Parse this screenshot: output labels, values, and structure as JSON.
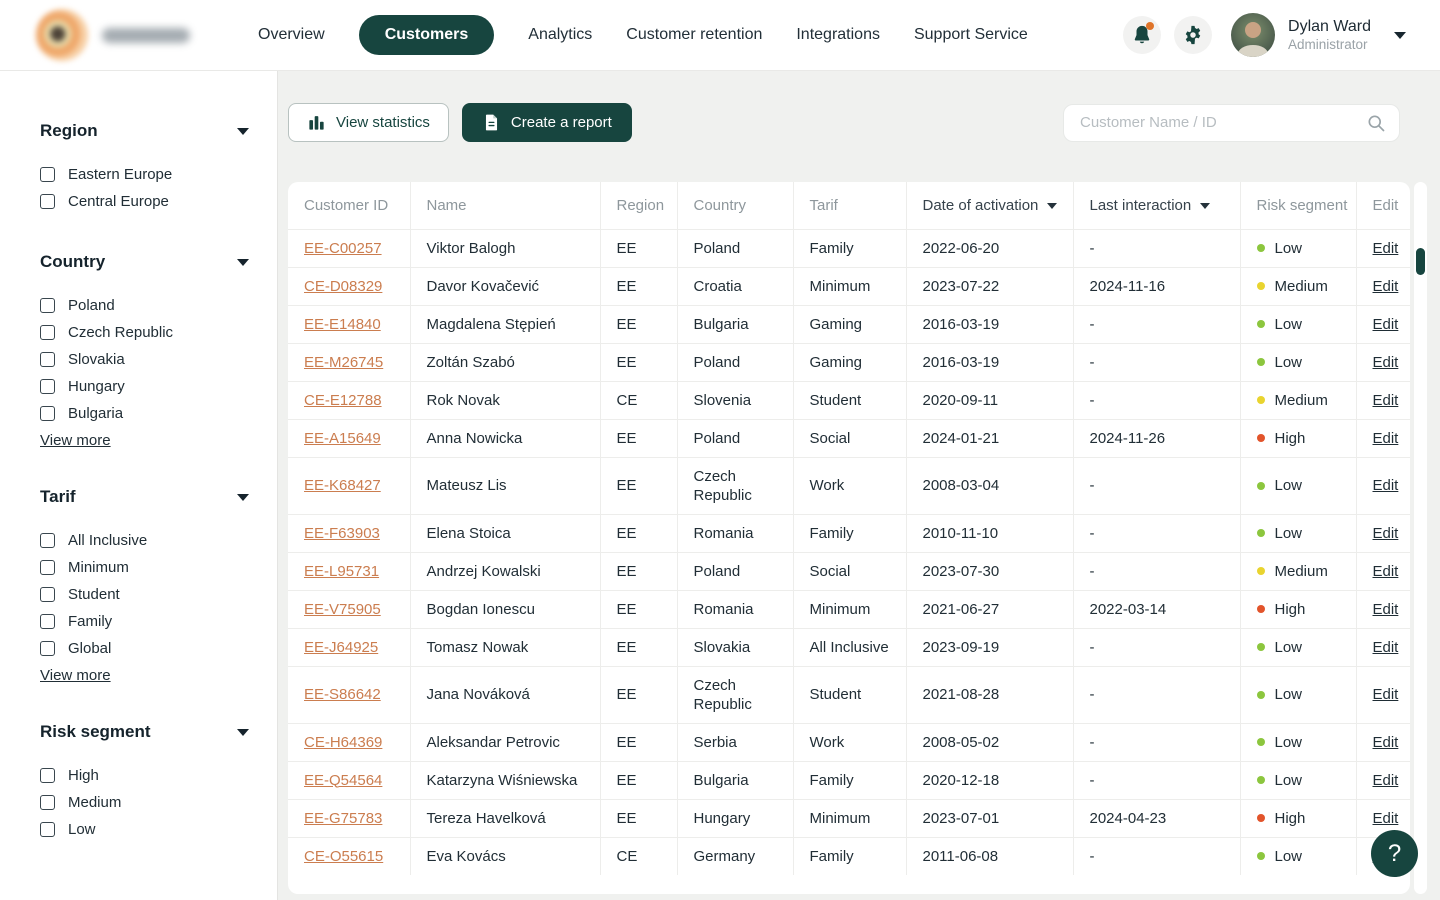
{
  "header": {
    "nav": [
      {
        "label": "Overview",
        "active": false
      },
      {
        "label": "Customers",
        "active": true
      },
      {
        "label": "Analytics",
        "active": false
      },
      {
        "label": "Customer retention",
        "active": false
      },
      {
        "label": "Integrations",
        "active": false
      },
      {
        "label": "Support Service",
        "active": false
      }
    ],
    "user": {
      "name": "Dylan Ward",
      "role": "Administrator"
    }
  },
  "sidebar": {
    "view_more_label": "View more",
    "groups": [
      {
        "title": "Region",
        "items": [
          "Eastern Europe",
          "Central Europe"
        ],
        "view_more": false
      },
      {
        "title": "Country",
        "items": [
          "Poland",
          "Czech Republic",
          "Slovakia",
          "Hungary",
          "Bulgaria"
        ],
        "view_more": true
      },
      {
        "title": "Tarif",
        "items": [
          "All Inclusive",
          "Minimum",
          "Student",
          "Family",
          "Global"
        ],
        "view_more": true
      },
      {
        "title": "Risk segment",
        "items": [
          "High",
          "Medium",
          "Low"
        ],
        "view_more": false
      }
    ]
  },
  "toolbar": {
    "view_statistics_label": "View statistics",
    "create_report_label": "Create a report",
    "search_placeholder": "Customer Name / ID"
  },
  "table": {
    "columns": [
      "Customer ID",
      "Name",
      "Region",
      "Country",
      "Tarif",
      "Date of activation",
      "Last interaction",
      "Risk segment",
      "Edit"
    ],
    "sortable_columns": [
      "Date of activation",
      "Last interaction"
    ],
    "edit_label": "Edit",
    "rows": [
      {
        "id": "EE-C00257",
        "name": "Viktor Balogh",
        "region": "EE",
        "country": "Poland",
        "tarif": "Family",
        "activation": "2022-06-20",
        "last_interaction": "-",
        "risk": "Low"
      },
      {
        "id": "CE-D08329",
        "name": "Davor Kovačević",
        "region": "EE",
        "country": "Croatia",
        "tarif": "Minimum",
        "activation": "2023-07-22",
        "last_interaction": "2024-11-16",
        "risk": "Medium"
      },
      {
        "id": "EE-E14840",
        "name": "Magdalena Stępień",
        "region": "EE",
        "country": "Bulgaria",
        "tarif": "Gaming",
        "activation": "2016-03-19",
        "last_interaction": "-",
        "risk": "Low"
      },
      {
        "id": "EE-M26745",
        "name": "Zoltán Szabó",
        "region": "EE",
        "country": "Poland",
        "tarif": "Gaming",
        "activation": "2016-03-19",
        "last_interaction": "-",
        "risk": "Low"
      },
      {
        "id": "CE-E12788",
        "name": "Rok Novak",
        "region": "CE",
        "country": "Slovenia",
        "tarif": "Student",
        "activation": "2020-09-11",
        "last_interaction": "-",
        "risk": "Medium"
      },
      {
        "id": "EE-A15649",
        "name": "Anna Nowicka",
        "region": "EE",
        "country": "Poland",
        "tarif": "Social",
        "activation": "2024-01-21",
        "last_interaction": "2024-11-26",
        "risk": "High"
      },
      {
        "id": "EE-K68427",
        "name": "Mateusz Lis",
        "region": "EE",
        "country": "Czech Republic",
        "tarif": "Work",
        "activation": "2008-03-04",
        "last_interaction": "-",
        "risk": "Low"
      },
      {
        "id": "EE-F63903",
        "name": "Elena Stoica",
        "region": "EE",
        "country": "Romania",
        "tarif": "Family",
        "activation": "2010-11-10",
        "last_interaction": "-",
        "risk": "Low"
      },
      {
        "id": "EE-L95731",
        "name": "Andrzej Kowalski",
        "region": "EE",
        "country": "Poland",
        "tarif": "Social",
        "activation": "2023-07-30",
        "last_interaction": "-",
        "risk": "Medium"
      },
      {
        "id": "EE-V75905",
        "name": "Bogdan Ionescu",
        "region": "EE",
        "country": "Romania",
        "tarif": "Minimum",
        "activation": "2021-06-27",
        "last_interaction": "2022-03-14",
        "risk": "High"
      },
      {
        "id": "EE-J64925",
        "name": "Tomasz Nowak",
        "region": "EE",
        "country": "Slovakia",
        "tarif": "All Inclusive",
        "activation": "2023-09-19",
        "last_interaction": "-",
        "risk": "Low"
      },
      {
        "id": "EE-S86642",
        "name": "Jana Nováková",
        "region": "EE",
        "country": "Czech Republic",
        "tarif": "Student",
        "activation": "2021-08-28",
        "last_interaction": "-",
        "risk": "Low"
      },
      {
        "id": "CE-H64369",
        "name": "Aleksandar Petrovic",
        "region": "EE",
        "country": "Serbia",
        "tarif": "Work",
        "activation": "2008-05-02",
        "last_interaction": "-",
        "risk": "Low"
      },
      {
        "id": "EE-Q54564",
        "name": "Katarzyna Wiśniewska",
        "region": "EE",
        "country": "Bulgaria",
        "tarif": "Family",
        "activation": "2020-12-18",
        "last_interaction": "-",
        "risk": "Low"
      },
      {
        "id": "EE-G75783",
        "name": "Tereza Havelková",
        "region": "EE",
        "country": "Hungary",
        "tarif": "Minimum",
        "activation": "2023-07-01",
        "last_interaction": "2024-04-23",
        "risk": "High"
      },
      {
        "id": "CE-O55615",
        "name": "Eva Kovács",
        "region": "CE",
        "country": "Germany",
        "tarif": "Family",
        "activation": "2011-06-08",
        "last_interaction": "-",
        "risk": "Low"
      }
    ]
  },
  "help": {
    "label": "?"
  },
  "colors": {
    "accent": "#17453f",
    "id_link": "#cb7d4f",
    "notification_dot": "#df7429",
    "risk": {
      "Low": "#8cc63e",
      "Medium": "#e9d42f",
      "High": "#e2542b"
    }
  }
}
